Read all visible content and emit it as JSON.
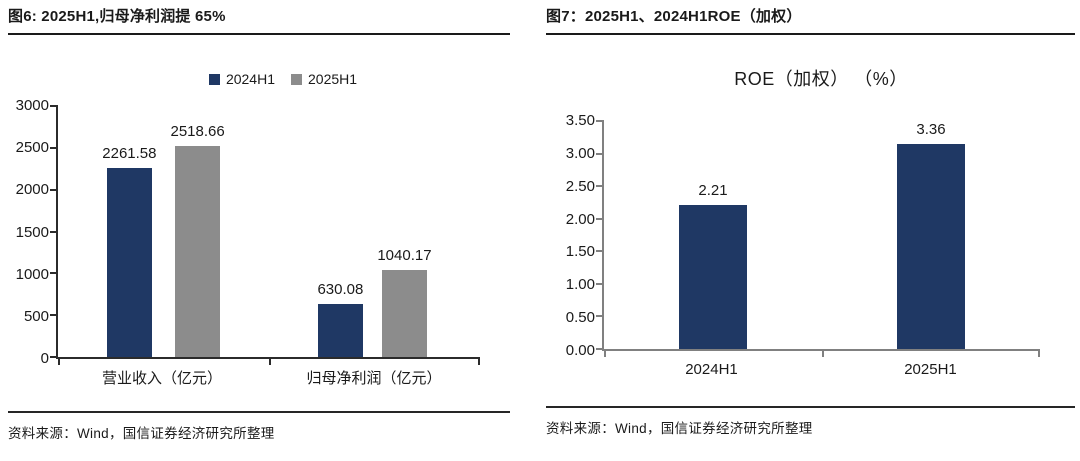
{
  "figures": [
    {
      "title": "图6: 2025H1,归母净利润提 65%",
      "source": "资料来源：Wind，国信证券经济研究所整理"
    },
    {
      "title": "图7：2025H1、2024H1ROE（加权）",
      "source": "资料来源：Wind，国信证券经济研究所整理"
    }
  ],
  "chart_data": [
    {
      "type": "bar",
      "title": "",
      "categories": [
        "营业收入（亿元）",
        "归母净利润（亿元）"
      ],
      "series": [
        {
          "name": "2024H1",
          "color": "#1F3864",
          "values": [
            2261.58,
            630.08
          ]
        },
        {
          "name": "2025H1",
          "color": "#8C8C8C",
          "values": [
            2518.66,
            1040.17
          ]
        }
      ],
      "ylim": [
        0,
        3000
      ],
      "yticks": [
        "3000",
        "2500",
        "2000",
        "1500",
        "1000",
        "500",
        "0"
      ],
      "grid": false,
      "legend_position": "top"
    },
    {
      "type": "bar",
      "title": "ROE（加权） （%）",
      "categories": [
        "2024H1",
        "2025H1"
      ],
      "series": [
        {
          "name": "ROE（加权）",
          "color": "#1F3864",
          "values": [
            2.21,
            3.36
          ]
        }
      ],
      "ylim": [
        0,
        3.5
      ],
      "yticks": [
        "3.50",
        "3.00",
        "2.50",
        "2.00",
        "1.50",
        "1.00",
        "0.50",
        "0.00"
      ],
      "grid": false,
      "legend_position": "none"
    }
  ]
}
